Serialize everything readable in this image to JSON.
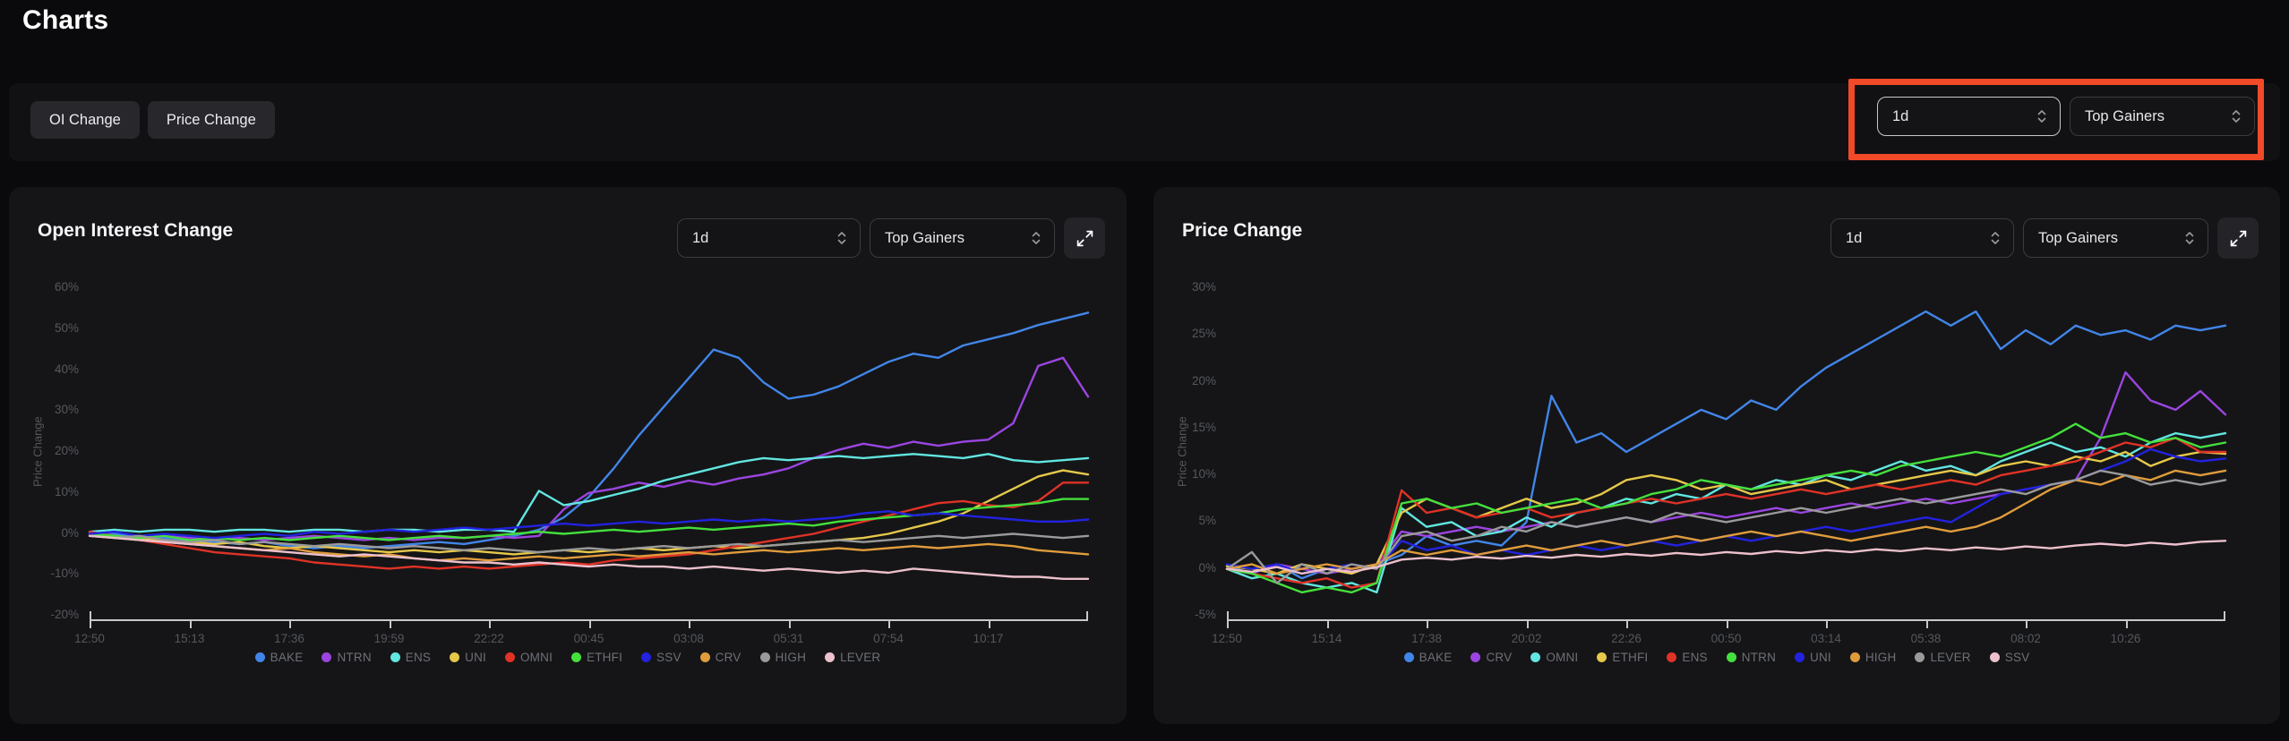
{
  "page": {
    "title": "Charts"
  },
  "toolbar": {
    "buttons": [
      {
        "label": "OI Change"
      },
      {
        "label": "Price Change"
      }
    ],
    "timeframe": "1d",
    "filter": "Top Gainers"
  },
  "annotation": {
    "color": "#f14a28",
    "note": "red highlight around toolbar dropdowns"
  },
  "chart_data": [
    {
      "type": "line",
      "title": "Open Interest Change",
      "ylabel": "Price Change",
      "ylim": [
        -20,
        60
      ],
      "yticks": [
        60,
        50,
        40,
        30,
        20,
        10,
        0,
        -10,
        -20
      ],
      "xtick_labels": [
        "12:50",
        "15:13",
        "17:36",
        "19:59",
        "22:22",
        "00:45",
        "03:08",
        "05:31",
        "07:54",
        "10:17"
      ],
      "controls": {
        "timeframe": "1d",
        "filter": "Top Gainers"
      },
      "legend_position": "bottom",
      "grid": false,
      "series": [
        {
          "name": "BAKE",
          "color": "#4285e8",
          "values": [
            0.5,
            0,
            -0.5,
            -1,
            -1.5,
            -2,
            -2.5,
            -2,
            -3,
            -3.5,
            -3,
            -3.5,
            -3,
            -2.5,
            -2,
            -2.5,
            -1.5,
            -0.5,
            1,
            4,
            9,
            16,
            24,
            31,
            38,
            45,
            43,
            37,
            33,
            34,
            36,
            39,
            42,
            44,
            43,
            46,
            47.5,
            49,
            51,
            52.5,
            54
          ]
        },
        {
          "name": "NTRN",
          "color": "#9b45e0",
          "values": [
            0,
            -0.5,
            -1,
            -0.5,
            -1,
            -1.5,
            -1,
            -1.5,
            -1,
            -0.5,
            -1,
            -1.5,
            -1,
            -1.5,
            -1,
            -1,
            -0.5,
            -1,
            -0.5,
            6,
            10,
            11,
            12.5,
            11.5,
            13,
            12,
            13.5,
            14.5,
            16,
            18.5,
            20.5,
            22,
            21,
            22.5,
            21.5,
            22.5,
            23,
            27,
            41,
            43,
            33.5
          ]
        },
        {
          "name": "ENS",
          "color": "#62e6e0",
          "values": [
            0.5,
            1,
            0.5,
            1,
            1,
            0.5,
            1,
            1,
            0.5,
            1,
            1,
            0.5,
            1,
            1,
            0.5,
            1,
            1,
            0.5,
            10.5,
            7,
            8,
            9.5,
            11,
            13,
            14.5,
            16,
            17.5,
            18.5,
            18,
            18.5,
            19,
            18.5,
            19,
            19.5,
            19,
            18.5,
            19.5,
            18,
            17.5,
            18,
            18.5
          ]
        },
        {
          "name": "UNI",
          "color": "#e6c84a",
          "values": [
            0,
            -0.5,
            -1,
            -1.5,
            -2,
            -2.5,
            -2,
            -3,
            -3.5,
            -3,
            -3.5,
            -4,
            -4.5,
            -4,
            -4.5,
            -4,
            -4.5,
            -5,
            -4.5,
            -4,
            -4.5,
            -4,
            -3.5,
            -4,
            -3.5,
            -3,
            -3.5,
            -3,
            -2.5,
            -2,
            -1.5,
            -1,
            0,
            1.5,
            3,
            5,
            8,
            11,
            14,
            15.5,
            14.5
          ]
        },
        {
          "name": "OMNI",
          "color": "#e03226",
          "values": [
            0.5,
            -0.5,
            -1.5,
            -2.5,
            -3.5,
            -4.5,
            -5,
            -5.5,
            -6,
            -7,
            -7.5,
            -8,
            -8.5,
            -8,
            -8.5,
            -8,
            -8.5,
            -8,
            -7.5,
            -7,
            -7.5,
            -6.5,
            -6,
            -5.5,
            -5,
            -4,
            -3,
            -2,
            -1,
            0,
            1.5,
            3,
            4.5,
            6,
            7.5,
            8,
            7,
            6.5,
            8,
            12.5,
            12.5
          ]
        },
        {
          "name": "ETHFI",
          "color": "#44e03c",
          "values": [
            0,
            -0.5,
            -1,
            -0.5,
            -1.5,
            -1,
            -1.5,
            -1,
            -1.5,
            -1,
            -0.5,
            -1,
            -1.5,
            -1,
            -0.5,
            -1,
            -0.5,
            0,
            0.5,
            0,
            0.5,
            1,
            0.5,
            1,
            1.5,
            1,
            1.5,
            2,
            2.5,
            2,
            3,
            3.5,
            4,
            4.5,
            5,
            6,
            6.5,
            7,
            7.5,
            8.5,
            8.5
          ]
        },
        {
          "name": "SSV",
          "color": "#2222e0",
          "values": [
            0,
            0.5,
            -0.5,
            0,
            -0.5,
            -1,
            -0.5,
            0,
            -0.5,
            0.5,
            0,
            0.5,
            1,
            0.5,
            1,
            1.5,
            1,
            1.5,
            2,
            2.5,
            2,
            2.5,
            3,
            2.5,
            3,
            3.5,
            3,
            3.5,
            3,
            3.5,
            4,
            5,
            5.5,
            4.5,
            5,
            4.5,
            4,
            3.5,
            3,
            3,
            3.5
          ]
        },
        {
          "name": "CRV",
          "color": "#e09c3c",
          "values": [
            -0.5,
            -1,
            -1.5,
            -2,
            -2.5,
            -3,
            -3.5,
            -4,
            -3.5,
            -4.5,
            -5,
            -5.5,
            -5,
            -6,
            -6.5,
            -6,
            -6.5,
            -6,
            -5.5,
            -6,
            -5.5,
            -5,
            -5.5,
            -5,
            -4.5,
            -5,
            -4.5,
            -4,
            -4.5,
            -4,
            -3.5,
            -4,
            -3.5,
            -3,
            -3.5,
            -3,
            -2.5,
            -3,
            -4,
            -4.5,
            -5
          ]
        },
        {
          "name": "HIGH",
          "color": "#9a9a9a",
          "values": [
            -0.5,
            -1,
            -0.5,
            -1.5,
            -2,
            -1.5,
            -2.5,
            -2,
            -2.5,
            -3,
            -2.5,
            -3,
            -3.5,
            -3,
            -3.5,
            -4,
            -3.5,
            -4,
            -4.5,
            -4,
            -3.5,
            -4,
            -3.5,
            -3,
            -3.5,
            -3,
            -2.5,
            -3,
            -2.5,
            -2,
            -1.5,
            -2,
            -1.5,
            -1,
            -0.5,
            -1,
            -0.5,
            0,
            -0.5,
            -1,
            -0.5
          ]
        },
        {
          "name": "LEVER",
          "color": "#ecc0cc",
          "values": [
            -0.5,
            -1,
            -1.5,
            -2,
            -2.5,
            -3,
            -3.5,
            -4,
            -4.5,
            -5,
            -5.5,
            -5,
            -5.5,
            -6,
            -6.5,
            -7,
            -7,
            -7.5,
            -7,
            -7.5,
            -8,
            -7.5,
            -8,
            -8,
            -8.5,
            -8,
            -8.5,
            -9,
            -8.5,
            -9,
            -9.5,
            -9,
            -9.5,
            -8.5,
            -9,
            -9.5,
            -10,
            -10.5,
            -10.5,
            -11,
            -11
          ]
        }
      ]
    },
    {
      "type": "line",
      "title": "Price Change",
      "ylabel": "Price Change",
      "ylim": [
        -5,
        30
      ],
      "yticks": [
        30,
        25,
        20,
        15,
        10,
        5,
        0,
        -5
      ],
      "xtick_labels": [
        "12:50",
        "15:14",
        "17:38",
        "20:02",
        "22:26",
        "00:50",
        "03:14",
        "05:38",
        "08:02",
        "10:26"
      ],
      "controls": {
        "timeframe": "1d",
        "filter": "Top Gainers"
      },
      "legend_position": "bottom",
      "grid": false,
      "series": [
        {
          "name": "BAKE",
          "color": "#4285e8",
          "values": [
            0.3,
            -0.5,
            0.5,
            -1,
            0,
            -0.5,
            0.5,
            1.5,
            3.5,
            2.5,
            3,
            2.5,
            5,
            18.5,
            13.5,
            14.5,
            12.5,
            14,
            15.5,
            17,
            16,
            18,
            17,
            19.5,
            21.5,
            23,
            24.5,
            26,
            27.5,
            26,
            27.5,
            23.5,
            25.5,
            24,
            26,
            25,
            25.5,
            24.5,
            26,
            25.5,
            26
          ]
        },
        {
          "name": "CRV",
          "color": "#9b45e0",
          "values": [
            0,
            -0.5,
            0.5,
            0,
            -0.5,
            0,
            0.5,
            4,
            3.5,
            4,
            4.5,
            4,
            4.5,
            5,
            4.5,
            5,
            5.5,
            5,
            5.5,
            6,
            5.5,
            6,
            6.5,
            6,
            6.5,
            7,
            6.5,
            7,
            7.5,
            7,
            7.5,
            8,
            8.5,
            9,
            9.5,
            14,
            21,
            18,
            17,
            19,
            16.5
          ]
        },
        {
          "name": "OMNI",
          "color": "#62e6e0",
          "values": [
            0,
            -1,
            -0.5,
            -1.5,
            -2,
            -1.5,
            -2.5,
            6.5,
            4.5,
            5,
            3.5,
            4,
            5.5,
            4.5,
            6,
            6.5,
            7.5,
            7,
            8,
            7.5,
            9,
            8.5,
            9.5,
            9,
            10,
            9.5,
            10.5,
            11.5,
            10.5,
            11,
            10,
            11.5,
            12.5,
            13.5,
            12.5,
            13,
            12,
            13.5,
            14.5,
            14,
            14.5
          ]
        },
        {
          "name": "ETHFI",
          "color": "#e6c84a",
          "values": [
            0.3,
            0,
            -0.5,
            0.5,
            0,
            -0.5,
            0.5,
            6,
            7.5,
            6.5,
            5.5,
            6.5,
            7.5,
            6.5,
            7,
            8,
            9.5,
            10,
            9.5,
            8.5,
            9,
            8,
            8.5,
            9,
            9.5,
            8.5,
            9,
            9.5,
            10,
            10.5,
            10,
            11,
            11.5,
            11,
            12,
            11.5,
            12.5,
            11,
            12,
            12.5,
            12.3
          ]
        },
        {
          "name": "ENS",
          "color": "#e03226",
          "values": [
            0,
            -0.5,
            -1,
            -1.5,
            -1,
            -2,
            -1.5,
            8.4,
            6,
            6.5,
            5.5,
            6,
            6.5,
            5.5,
            6,
            6.5,
            7,
            7.5,
            7,
            7.5,
            8,
            7.5,
            8,
            8.5,
            8,
            8.5,
            9,
            8.5,
            9,
            9.5,
            9,
            10,
            10.5,
            11,
            11.5,
            12.5,
            13.5,
            13,
            14,
            12.5,
            12.5
          ]
        },
        {
          "name": "NTRN",
          "color": "#44e03c",
          "values": [
            0,
            -0.5,
            -1.5,
            -2.5,
            -2,
            -2.5,
            -1.5,
            7,
            7.5,
            6.5,
            7,
            6,
            6.5,
            7,
            7.5,
            6.5,
            7,
            8,
            8.5,
            9.5,
            9,
            8.5,
            9,
            9.5,
            10,
            10.5,
            10,
            11,
            11.5,
            12,
            12.5,
            12,
            13,
            14,
            15.5,
            14,
            14.5,
            13.5,
            14,
            13,
            13.5
          ]
        },
        {
          "name": "UNI",
          "color": "#2222e0",
          "values": [
            0.5,
            0,
            0.5,
            -0.5,
            0,
            0.5,
            0,
            3,
            2,
            2.5,
            1.5,
            2,
            1.5,
            2,
            2.5,
            2,
            2.5,
            3,
            2.5,
            3,
            3.5,
            3,
            3.5,
            4,
            4.5,
            4,
            4.5,
            5,
            5.5,
            5,
            6.5,
            8,
            8.5,
            9,
            9.5,
            10.5,
            11.5,
            12.8,
            12,
            11.5,
            11.8
          ]
        },
        {
          "name": "HIGH",
          "color": "#e09c3c",
          "values": [
            0,
            0.5,
            -0.5,
            0,
            0.5,
            0,
            0.5,
            2,
            1.5,
            2,
            1.5,
            2,
            2.5,
            2,
            2.5,
            3,
            2.5,
            3,
            3.5,
            3,
            3.5,
            4,
            3.5,
            4,
            3.5,
            3,
            3.5,
            4,
            4.5,
            4,
            4.5,
            5.5,
            7,
            8.5,
            9.5,
            9,
            10,
            9.5,
            10.5,
            10,
            10.5
          ]
        },
        {
          "name": "LEVER",
          "color": "#9a9a9a",
          "values": [
            0,
            1.8,
            -1.5,
            0.5,
            -0.5,
            0.5,
            0,
            3.5,
            4,
            3,
            3.5,
            4.5,
            4,
            5,
            4.5,
            5,
            5.5,
            5,
            6,
            5.5,
            5,
            5.5,
            6,
            6.5,
            6,
            6.5,
            7,
            7.5,
            7,
            7.5,
            8,
            8.5,
            8,
            9,
            9.5,
            10.5,
            10,
            9,
            9.5,
            9,
            9.5
          ]
        },
        {
          "name": "SSV",
          "color": "#ecc0cc",
          "values": [
            0,
            -0.3,
            0.2,
            -0.5,
            0,
            -0.3,
            0.2,
            1,
            1.2,
            1,
            1.3,
            1.1,
            1.4,
            1.2,
            1.5,
            1.3,
            1.6,
            1.4,
            1.7,
            1.5,
            1.8,
            1.6,
            1.9,
            1.7,
            2,
            1.8,
            2.1,
            1.9,
            2.2,
            2,
            2.3,
            2.1,
            2.4,
            2.2,
            2.5,
            2.7,
            2.5,
            2.8,
            2.6,
            2.9,
            3
          ]
        }
      ]
    }
  ]
}
